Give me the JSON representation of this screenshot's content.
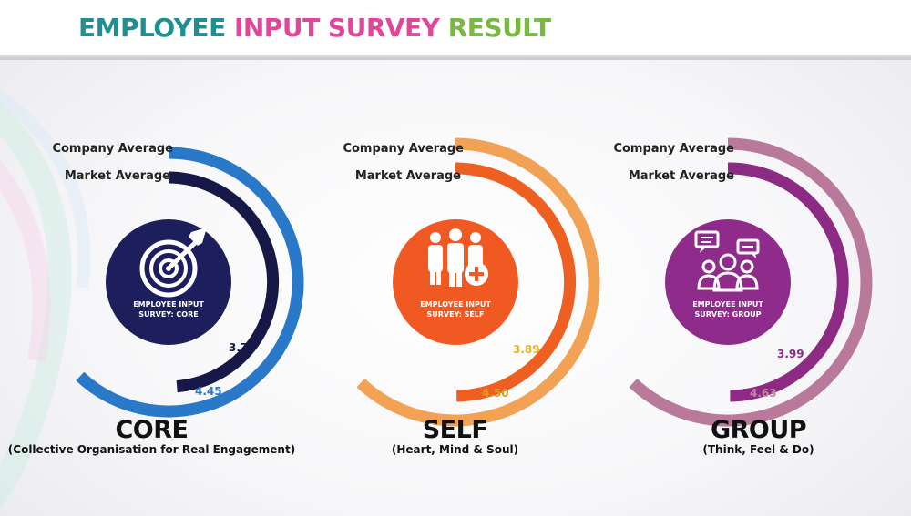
{
  "title": {
    "word1": "EMPLOYEE",
    "word2": "INPUT",
    "word3": "SURVEY",
    "word4": "RESULT",
    "color1": "#1e8f93",
    "color2": "#e0479b",
    "color3": "#e0479b",
    "color4": "#79b943"
  },
  "chart_data": {
    "type": "radial-bar",
    "scale_max": 5,
    "series_names": [
      "Company Average",
      "Market Average"
    ],
    "panels": [
      {
        "name": "CORE",
        "subtitle": "(Collective Organisation for Real Engagement)",
        "circle_label_line1": "EMPLOYEE INPUT",
        "circle_label_line2": "SURVEY: CORE",
        "icon": "target-icon",
        "company_label": "Company Average",
        "market_label": "Market Average",
        "company_value": 4.45,
        "market_value": 3.76,
        "company_value_text": "4.45",
        "market_value_text": "3.76",
        "company_color": "#2a78c8",
        "market_color": "#161948",
        "circle_color": "#1d1f5c",
        "company_value_color": "#2a78c8",
        "market_value_color": "#161948"
      },
      {
        "name": "SELF",
        "subtitle": "(Heart, Mind & Soul)",
        "circle_label_line1": "EMPLOYEE INPUT",
        "circle_label_line2": "SURVEY: SELF",
        "icon": "people-plus-icon",
        "company_label": "Company Average",
        "market_label": "Market Average",
        "company_value": 4.5,
        "market_value": 3.89,
        "company_value_text": "4.50",
        "market_value_text": "3.89",
        "company_color": "#f2a255",
        "market_color": "#ee5f22",
        "circle_color": "#f05a22",
        "company_value_color": "#d9a020",
        "market_value_color": "#e8b520"
      },
      {
        "name": "GROUP",
        "subtitle": "(Think, Feel & Do)",
        "circle_label_line1": "EMPLOYEE INPUT",
        "circle_label_line2": "SURVEY: GROUP",
        "icon": "group-chat-icon",
        "company_label": "Company Average",
        "market_label": "Market Average",
        "company_value": 4.63,
        "market_value": 3.99,
        "company_value_text": "4.63",
        "market_value_text": "3.99",
        "company_color": "#b9799b",
        "market_color": "#8d2a83",
        "circle_color": "#8e2b8b",
        "company_value_color": "#c08aa6",
        "market_value_color": "#8d2a83"
      }
    ]
  }
}
